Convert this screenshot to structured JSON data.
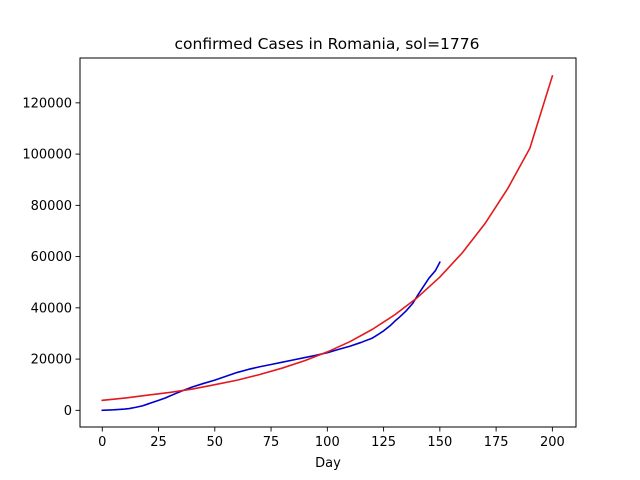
{
  "chart_data": {
    "type": "line",
    "title": "confirmed Cases in Romania, sol=1776",
    "xlabel": "Day",
    "ylabel": "",
    "xlim": [
      -9.9,
      210.5
    ],
    "ylim": [
      -6500,
      137500
    ],
    "xticks": [
      0,
      25,
      50,
      75,
      100,
      125,
      150,
      175,
      200
    ],
    "yticks": [
      0,
      20000,
      40000,
      60000,
      80000,
      100000,
      120000
    ],
    "grid": false,
    "legend": "none",
    "series": [
      {
        "color": "#0000cd",
        "x": [
          0,
          5,
          10,
          12,
          15,
          18,
          20,
          22,
          25,
          28,
          30,
          33,
          36,
          40,
          45,
          50,
          55,
          60,
          65,
          70,
          75,
          80,
          85,
          90,
          95,
          100,
          105,
          110,
          115,
          120,
          122,
          125,
          128,
          130,
          132,
          135,
          138,
          140,
          142,
          145,
          148,
          150
        ],
        "y": [
          0,
          200,
          500,
          700,
          1200,
          1800,
          2400,
          3000,
          3900,
          4800,
          5600,
          6700,
          7800,
          9100,
          10500,
          11800,
          13300,
          14800,
          16000,
          17000,
          17900,
          18800,
          19700,
          20600,
          21500,
          22500,
          23800,
          25000,
          26500,
          28200,
          29300,
          31000,
          33100,
          34800,
          36300,
          38800,
          41800,
          44700,
          47400,
          51400,
          54500,
          57800
        ]
      },
      {
        "color": "#e31a1c",
        "x": [
          0,
          10,
          20,
          30,
          40,
          50,
          60,
          70,
          80,
          90,
          100,
          110,
          120,
          130,
          140,
          150,
          160,
          170,
          180,
          190,
          200
        ],
        "y": [
          3900,
          4800,
          5900,
          7000,
          8300,
          10000,
          11800,
          14000,
          16500,
          19400,
          22800,
          26800,
          31600,
          37300,
          44000,
          52000,
          61500,
          72800,
          86300,
          102300,
          130500
        ]
      }
    ]
  }
}
